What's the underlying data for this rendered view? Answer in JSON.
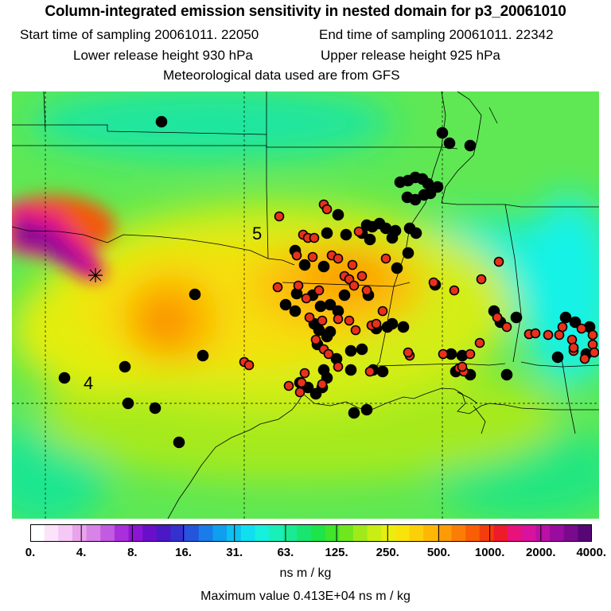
{
  "title": "Column-integrated emission sensitivity in nested domain for p3_20061010",
  "header": {
    "start_time": "Start time of sampling 20061011. 22050",
    "end_time": "End time of sampling 20061011. 22342",
    "lower_release": "Lower release height  930 hPa",
    "upper_release": "Upper release height  925 hPa",
    "met_data": "Meteorological data used are from GFS"
  },
  "map": {
    "region_labels": [
      "5",
      "4"
    ],
    "release_marker": "release-point-asterisk",
    "station_colors": {
      "black": "#000000",
      "red": "#e8311c"
    }
  },
  "colorbar": {
    "tick_labels": [
      "0.",
      "4.",
      "8.",
      "16.",
      "31.",
      "63.",
      "125.",
      "250.",
      "500.",
      "1000.",
      "2000.",
      "4000."
    ],
    "colors": [
      "#ffffff",
      "#fbe3fb",
      "#f5c8f5",
      "#e9a4ec",
      "#d783e7",
      "#c25ae2",
      "#aa2fdc",
      "#8c14d4",
      "#6a0fc9",
      "#4a18c4",
      "#3431cf",
      "#2555dd",
      "#1a7ce8",
      "#109eef",
      "#0dc1f2",
      "#10dff0",
      "#16f0dc",
      "#18f0b8",
      "#19eb94",
      "#18e66e",
      "#1de448",
      "#3fe42b",
      "#70e61f",
      "#a0ea1a",
      "#c9ee14",
      "#e8ef0e",
      "#f8e40a",
      "#fcd008",
      "#fdb806",
      "#fc9b05",
      "#fb7d05",
      "#f95e06",
      "#f43c0c",
      "#ee1c2a",
      "#e8137a",
      "#d8129c",
      "#bb10a6",
      "#9a0c9f",
      "#7a0a8d",
      "#560776"
    ],
    "units": "ns m / kg"
  },
  "max_value": "Maximum value  0.413E+04 ns m / kg"
}
